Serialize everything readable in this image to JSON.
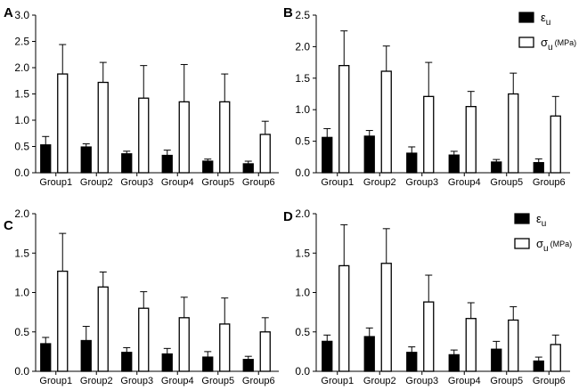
{
  "colors": {
    "epsilon": "#000000",
    "sigma": "#ffffff",
    "stroke": "#000000"
  },
  "chart_data": [
    {
      "type": "bar",
      "panel_label": "A",
      "categories": [
        "Group1",
        "Group2",
        "Group3",
        "Group4",
        "Group5",
        "Group6"
      ],
      "ylim": [
        0,
        3.0
      ],
      "yticks": [
        "0.0",
        "0.5",
        "1.0",
        "1.5",
        "2.0",
        "2.5",
        "3.0"
      ],
      "legend": null,
      "series": [
        {
          "name": "ε_u",
          "values": [
            0.53,
            0.49,
            0.36,
            0.33,
            0.22,
            0.17
          ],
          "errors": [
            0.16,
            0.06,
            0.05,
            0.1,
            0.04,
            0.05
          ]
        },
        {
          "name": "σ_u (MPa)",
          "values": [
            1.88,
            1.72,
            1.42,
            1.35,
            1.35,
            0.73
          ],
          "errors": [
            0.56,
            0.38,
            0.62,
            0.71,
            0.53,
            0.25
          ]
        }
      ]
    },
    {
      "type": "bar",
      "panel_label": "B",
      "categories": [
        "Group1",
        "Group2",
        "Group3",
        "Group4",
        "Group5",
        "Group6"
      ],
      "ylim": [
        0,
        2.5
      ],
      "yticks": [
        "0.0",
        "0.5",
        "1.0",
        "1.5",
        "2.0",
        "2.5"
      ],
      "legend": {
        "position": "top-right",
        "epsilon": {
          "symbol": "ε",
          "sub": "u",
          "unit": ""
        },
        "sigma": {
          "symbol": "σ",
          "sub": "u",
          "unit": "(MPa)"
        }
      },
      "series": [
        {
          "name": "ε_u",
          "values": [
            0.56,
            0.58,
            0.31,
            0.28,
            0.17,
            0.16
          ],
          "errors": [
            0.14,
            0.09,
            0.1,
            0.06,
            0.04,
            0.06
          ]
        },
        {
          "name": "σ_u (MPa)",
          "values": [
            1.7,
            1.61,
            1.21,
            1.05,
            1.25,
            0.9
          ],
          "errors": [
            0.55,
            0.4,
            0.54,
            0.24,
            0.33,
            0.31
          ]
        }
      ]
    },
    {
      "type": "bar",
      "panel_label": "C",
      "categories": [
        "Group1",
        "Group2",
        "Group3",
        "Group4",
        "Group5",
        "Group6"
      ],
      "ylim": [
        0,
        2.0
      ],
      "yticks": [
        "0.0",
        "0.5",
        "1.0",
        "1.5",
        "2.0"
      ],
      "legend": null,
      "series": [
        {
          "name": "ε_u",
          "values": [
            0.35,
            0.39,
            0.24,
            0.22,
            0.18,
            0.15
          ],
          "errors": [
            0.08,
            0.18,
            0.06,
            0.07,
            0.07,
            0.04
          ]
        },
        {
          "name": "σ_u (MPa)",
          "values": [
            1.27,
            1.07,
            0.8,
            0.68,
            0.6,
            0.5
          ],
          "errors": [
            0.48,
            0.19,
            0.21,
            0.26,
            0.33,
            0.18
          ]
        }
      ]
    },
    {
      "type": "bar",
      "panel_label": "D",
      "categories": [
        "Group1",
        "Group2",
        "Group3",
        "Group4",
        "Group5",
        "Group6"
      ],
      "ylim": [
        0,
        2.0
      ],
      "yticks": [
        "0.0",
        "0.5",
        "1.0",
        "1.5",
        "2.0"
      ],
      "legend": {
        "position": "top-right",
        "epsilon": {
          "symbol": "ε",
          "sub": "u",
          "unit": ""
        },
        "sigma": {
          "symbol": "σ",
          "sub": "u",
          "unit": "(MPa)"
        }
      },
      "series": [
        {
          "name": "ε_u",
          "values": [
            0.38,
            0.44,
            0.24,
            0.21,
            0.28,
            0.13
          ],
          "errors": [
            0.08,
            0.11,
            0.07,
            0.06,
            0.1,
            0.05
          ]
        },
        {
          "name": "σ_u (MPa)",
          "values": [
            1.34,
            1.37,
            0.88,
            0.67,
            0.65,
            0.34
          ],
          "errors": [
            0.52,
            0.44,
            0.34,
            0.2,
            0.17,
            0.12
          ]
        }
      ]
    }
  ]
}
